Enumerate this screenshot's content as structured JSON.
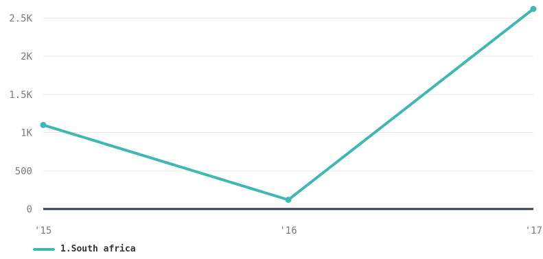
{
  "chart_data": {
    "type": "line",
    "x": [
      "'15",
      "'16",
      "'17"
    ],
    "series": [
      {
        "name": "1.South africa",
        "values": [
          1100,
          120,
          2620
        ],
        "color": "#3fb8b2"
      }
    ],
    "y_ticks": [
      0,
      500,
      1000,
      1500,
      2000,
      2500
    ],
    "y_tick_labels": [
      "0",
      "500",
      "1K",
      "1.5K",
      "2K",
      "2.5K"
    ],
    "ylim": [
      0,
      2620
    ],
    "grid": true,
    "legend_position": "bottom-left",
    "colors": {
      "gridline": "#e8e8e8",
      "baseline": "#333d47",
      "tick_text": "#7a7a7a"
    }
  }
}
